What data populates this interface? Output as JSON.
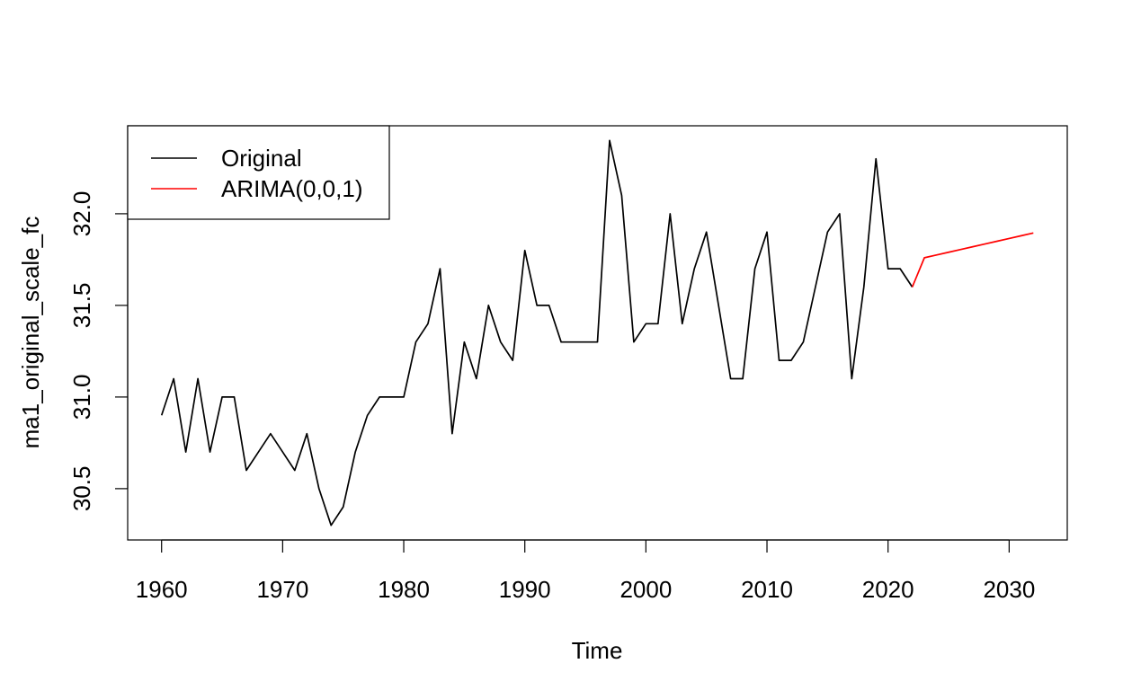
{
  "chart_data": {
    "type": "line",
    "title": "",
    "xlabel": "Time",
    "ylabel": "ma1_original_scale_fc",
    "xlim": [
      1957.2,
      2034.8
    ],
    "ylim": [
      30.22,
      32.48
    ],
    "x_ticks": [
      1960,
      1970,
      1980,
      1990,
      2000,
      2010,
      2020,
      2030
    ],
    "x_tick_labels": [
      "1960",
      "1970",
      "1980",
      "1990",
      "2000",
      "2010",
      "2020",
      "2030"
    ],
    "y_ticks": [
      30.5,
      31.0,
      31.5,
      32.0
    ],
    "y_tick_labels": [
      "30.5",
      "31.0",
      "31.5",
      "32.0"
    ],
    "grid": false,
    "legend_position": "top-left",
    "series": [
      {
        "name": "Original",
        "color": "#000000",
        "x": [
          1960,
          1961,
          1962,
          1963,
          1964,
          1965,
          1966,
          1967,
          1968,
          1969,
          1970,
          1971,
          1972,
          1973,
          1974,
          1975,
          1976,
          1977,
          1978,
          1979,
          1980,
          1981,
          1982,
          1983,
          1984,
          1985,
          1986,
          1987,
          1988,
          1989,
          1990,
          1991,
          1992,
          1993,
          1994,
          1995,
          1996,
          1997,
          1998,
          1999,
          2000,
          2001,
          2002,
          2003,
          2004,
          2005,
          2006,
          2007,
          2008,
          2009,
          2010,
          2011,
          2012,
          2013,
          2014,
          2015,
          2016,
          2017,
          2018,
          2019,
          2020,
          2021,
          2022
        ],
        "y": [
          30.9,
          31.1,
          30.7,
          31.1,
          30.7,
          31.0,
          31.0,
          30.6,
          30.7,
          30.8,
          30.7,
          30.6,
          30.8,
          30.5,
          30.3,
          30.4,
          30.7,
          30.9,
          31.0,
          31.0,
          31.0,
          31.3,
          31.4,
          31.7,
          30.8,
          31.3,
          31.1,
          31.5,
          31.3,
          31.2,
          31.8,
          31.5,
          31.5,
          31.3,
          31.3,
          31.3,
          31.3,
          32.4,
          32.1,
          31.3,
          31.4,
          31.4,
          32.0,
          31.4,
          31.7,
          31.9,
          31.5,
          31.1,
          31.1,
          31.7,
          31.9,
          31.2,
          31.2,
          31.3,
          31.6,
          31.9,
          32.0,
          31.1,
          31.6,
          32.3,
          31.7,
          31.7,
          31.6
        ]
      },
      {
        "name": "ARIMA(0,0,1)",
        "color": "#ff0000",
        "x": [
          2022,
          2023,
          2024,
          2025,
          2026,
          2027,
          2028,
          2029,
          2030,
          2031,
          2032
        ],
        "y": [
          31.6,
          31.76,
          31.775,
          31.79,
          31.805,
          31.82,
          31.835,
          31.85,
          31.865,
          31.88,
          31.895
        ]
      }
    ]
  }
}
